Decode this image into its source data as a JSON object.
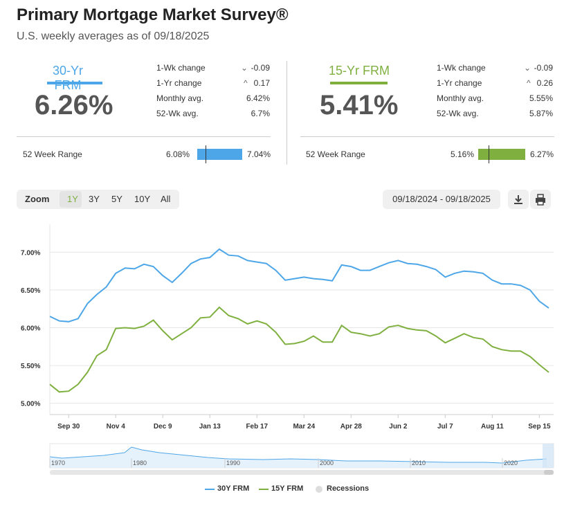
{
  "header": {
    "title": "Primary Mortgage Market Survey®",
    "subtitle": "U.S. weekly averages as of 09/18/2025"
  },
  "products": [
    {
      "name": "30-Yr FRM",
      "rate": "6.26%",
      "color": "#4da6e8",
      "stats": [
        {
          "label": "1-Wk change",
          "dir": "down",
          "value": "-0.09"
        },
        {
          "label": "1-Yr change",
          "dir": "up",
          "value": "0.17"
        },
        {
          "label": "Monthly avg.",
          "dir": "",
          "value": "6.42%"
        },
        {
          "label": "52-Wk avg.",
          "dir": "",
          "value": "6.7%"
        }
      ],
      "range_label": "52 Week Range",
      "range_low": "6.08%",
      "range_high": "7.04%",
      "range_current": 6.26
    },
    {
      "name": "15-Yr FRM",
      "rate": "5.41%",
      "color": "#7fb03f",
      "stats": [
        {
          "label": "1-Wk change",
          "dir": "down",
          "value": "-0.09"
        },
        {
          "label": "1-Yr change",
          "dir": "up",
          "value": "0.26"
        },
        {
          "label": "Monthly avg.",
          "dir": "",
          "value": "5.55%"
        },
        {
          "label": "52-Wk avg.",
          "dir": "",
          "value": "5.87%"
        }
      ],
      "range_label": "52 Week Range",
      "range_low": "5.16%",
      "range_high": "6.27%",
      "range_current": 5.41
    }
  ],
  "toolbar": {
    "zoom_label": "Zoom",
    "zoom_options": [
      "1Y",
      "3Y",
      "5Y",
      "10Y",
      "All"
    ],
    "active_zoom": "1Y",
    "date_range": "09/18/2024 - 09/18/2025",
    "download_icon": "download-icon",
    "print_icon": "print-icon"
  },
  "chart_data": {
    "type": "line",
    "ylim": [
      4.85,
      7.37
    ],
    "y_ticks": [
      "5.00%",
      "5.50%",
      "6.00%",
      "6.50%",
      "7.00%"
    ],
    "x_ticks": [
      "Sep 30",
      "Nov 4",
      "Dec 9",
      "Jan 13",
      "Feb 17",
      "Mar 24",
      "Apr 28",
      "Jun 2",
      "Jul 7",
      "Aug 11",
      "Sep 15"
    ],
    "series": [
      {
        "name": "30Y FRM",
        "color": "#4da6e8",
        "values": [
          6.15,
          6.09,
          6.08,
          6.12,
          6.32,
          6.44,
          6.54,
          6.72,
          6.79,
          6.78,
          6.84,
          6.81,
          6.69,
          6.6,
          6.72,
          6.85,
          6.91,
          6.93,
          7.04,
          6.96,
          6.95,
          6.89,
          6.87,
          6.85,
          6.76,
          6.63,
          6.65,
          6.67,
          6.65,
          6.64,
          6.62,
          6.83,
          6.81,
          6.76,
          6.76,
          6.81,
          6.86,
          6.89,
          6.85,
          6.84,
          6.81,
          6.77,
          6.67,
          6.72,
          6.75,
          6.74,
          6.72,
          6.63,
          6.58,
          6.58,
          6.56,
          6.5,
          6.35,
          6.26
        ]
      },
      {
        "name": "15Y FRM",
        "color": "#7fb03f",
        "values": [
          5.25,
          5.15,
          5.16,
          5.25,
          5.41,
          5.63,
          5.71,
          5.99,
          6.0,
          5.99,
          6.02,
          6.1,
          5.96,
          5.84,
          5.92,
          6.0,
          6.13,
          6.14,
          6.27,
          6.16,
          6.12,
          6.05,
          6.09,
          6.05,
          5.94,
          5.78,
          5.79,
          5.82,
          5.89,
          5.81,
          5.81,
          6.03,
          5.94,
          5.92,
          5.89,
          5.92,
          6.01,
          6.03,
          5.99,
          5.97,
          5.96,
          5.89,
          5.8,
          5.86,
          5.92,
          5.87,
          5.85,
          5.75,
          5.71,
          5.69,
          5.69,
          5.62,
          5.51,
          5.41
        ]
      }
    ],
    "navigator_ticks": [
      "1970",
      "1980",
      "1990",
      "2000",
      "2010",
      "2020"
    ],
    "legend": [
      "30Y FRM",
      "15Y FRM",
      "Recessions"
    ],
    "recession_color": "#dddddd"
  }
}
